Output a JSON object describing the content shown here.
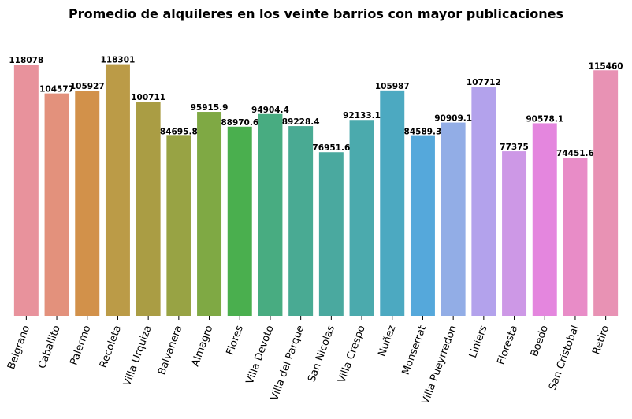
{
  "chart_data": {
    "type": "bar",
    "title": "Promedio de alquileres en los veinte barrios con mayor publicaciones",
    "xlabel": "",
    "ylabel": "",
    "ylim": [
      0,
      130000
    ],
    "grid": false,
    "categories": [
      "Belgrano",
      "Caballito",
      "Palermo",
      "Recoleta",
      "Villa Urquiza",
      "Balvanera",
      "Almagro",
      "Flores",
      "Villa Devoto",
      "Villa del Parque",
      "San Nicolas",
      "Villa Crespo",
      "Nuñez",
      "Monserrat",
      "Villa Pueyrredon",
      "Liniers",
      "Floresta",
      "Boedo",
      "San Cristobal",
      "Retiro"
    ],
    "values": [
      118078,
      104577,
      105927,
      118301,
      100711,
      84695.8,
      95915.9,
      88970.6,
      94904.4,
      89228.4,
      76951.6,
      92133.1,
      105987,
      84589.3,
      90909.1,
      107712,
      77375,
      90578.1,
      74451.6,
      115460
    ],
    "value_labels": [
      "118078",
      "104577",
      "105927",
      "118301",
      "100711",
      "84695.8",
      "95915.9",
      "88970.6",
      "94904.4",
      "89228.4",
      "76951.6",
      "92133.1",
      "105987",
      "84589.3",
      "90909.1",
      "107712",
      "77375",
      "90578.1",
      "74451.6",
      "115460"
    ],
    "colors": [
      "#e8929c",
      "#e3917c",
      "#d2914a",
      "#bb9b47",
      "#aa9d44",
      "#98a344",
      "#7fa944",
      "#4aaf4e",
      "#48ac81",
      "#49aa93",
      "#4aa99f",
      "#4baaad",
      "#4ca9c1",
      "#55a8db",
      "#92ade6",
      "#b3a2ec",
      "#cd98e6",
      "#e486de",
      "#e88cc7",
      "#e892b4"
    ]
  }
}
